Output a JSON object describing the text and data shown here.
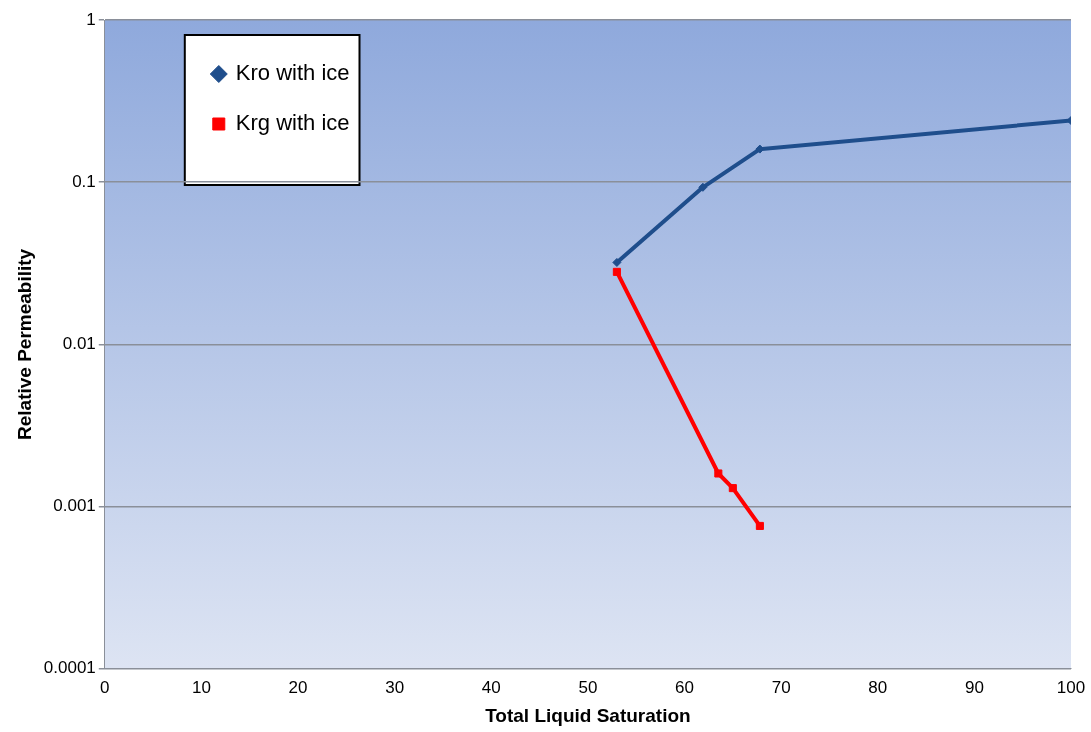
{
  "chart_data": {
    "type": "line",
    "xlabel": "Total Liquid Saturation",
    "ylabel": "Relative Permeability",
    "xlim": [
      0,
      100
    ],
    "xticks": [
      0,
      10,
      20,
      30,
      40,
      50,
      60,
      70,
      80,
      90,
      100
    ],
    "ylim": [
      0.0001,
      1
    ],
    "yticks": [
      0.0001,
      0.001,
      0.01,
      0.1,
      1
    ],
    "log": "y",
    "grid": "y",
    "legend": "top left",
    "line_style": "solid",
    "series": [
      {
        "name": "Kro with ice",
        "color": "#1f4e8c",
        "marker": "diamond",
        "x": [
          53,
          61.9,
          67.8,
          100
        ],
        "values": [
          0.032,
          0.093,
          0.16,
          0.24
        ]
      },
      {
        "name": "Krg with ice",
        "color": "#ff0000",
        "marker": "square",
        "x": [
          53,
          63.5,
          65,
          67.8
        ],
        "values": [
          0.028,
          0.0016,
          0.0013,
          0.00076
        ]
      }
    ]
  }
}
